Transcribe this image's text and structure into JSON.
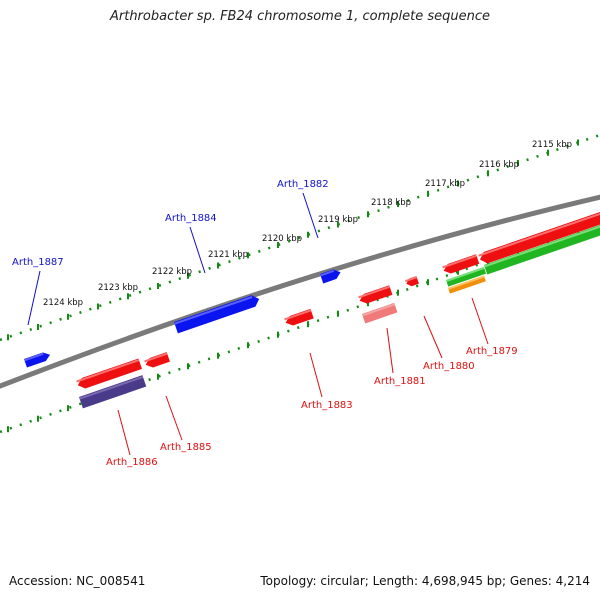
{
  "title": "Arthrobacter sp. FB24 chromosome 1, complete sequence",
  "accession": "Accession: NC_008541",
  "summary": "Topology: circular; Length: 4,698,945 bp; Genes: 4,214",
  "colors": {
    "backbone": "#7a7a7a",
    "ticks": "#138a13",
    "forward_gene": "#0a14ee",
    "reverse_gene": "#ee1010",
    "reverse_gene_light": "#f07a7a",
    "reverse_gene_purple": "#4a3a8a",
    "rna_green": "#22b522",
    "rna_orange": "#f0900a",
    "forward_label": "#1010cc",
    "reverse_label": "#dd1010"
  },
  "scale_labels": [
    "2115 kbp",
    "2116 kbp",
    "2117 kbp",
    "2118 kbp",
    "2119 kbp",
    "2120 kbp",
    "2121 kbp",
    "2122 kbp",
    "2123 kbp",
    "2124 kbp"
  ],
  "gene_labels": {
    "forward": [
      "Arth_1882",
      "Arth_1884",
      "Arth_1887"
    ],
    "reverse": [
      "Arth_1879",
      "Arth_1880",
      "Arth_1881",
      "Arth_1883",
      "Arth_1885",
      "Arth_1886"
    ]
  }
}
